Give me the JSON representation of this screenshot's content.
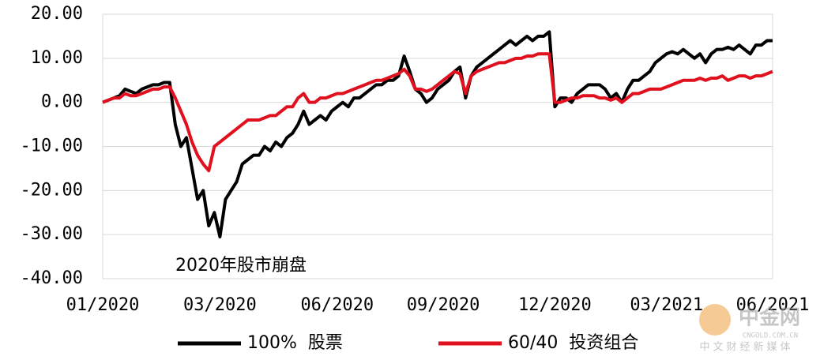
{
  "chart_data": {
    "type": "line",
    "annotation": "2020年股市崩盘",
    "watermark": {
      "name": "中金网",
      "site": "CNGOLD.COM.CN",
      "slogan": "中文财经新媒体"
    },
    "categories": [
      "01/2020",
      null,
      null,
      null,
      null,
      null,
      null,
      null,
      null,
      null,
      null,
      null,
      null,
      null,
      null,
      null,
      null,
      null,
      null,
      null,
      null,
      "03/2020",
      null,
      null,
      null,
      null,
      null,
      null,
      null,
      null,
      null,
      null,
      null,
      null,
      null,
      null,
      null,
      null,
      null,
      null,
      null,
      null,
      "06/2020",
      null,
      null,
      null,
      null,
      null,
      null,
      null,
      null,
      null,
      null,
      null,
      null,
      null,
      null,
      null,
      null,
      null,
      null,
      "09/2020",
      null,
      null,
      null,
      null,
      null,
      null,
      null,
      null,
      null,
      null,
      null,
      null,
      null,
      null,
      null,
      null,
      null,
      null,
      null,
      "12/2020",
      null,
      null,
      null,
      null,
      null,
      null,
      null,
      null,
      null,
      null,
      null,
      null,
      null,
      null,
      null,
      null,
      null,
      null,
      null,
      "03/2021",
      null,
      null,
      null,
      null,
      null,
      null,
      null,
      null,
      null,
      null,
      null,
      null,
      null,
      null,
      null,
      null,
      null,
      null,
      "06/2021"
    ],
    "series": [
      {
        "name": "100%  股票",
        "color": "#000000",
        "values": [
          0,
          0.5,
          1,
          1.5,
          3,
          2.5,
          2,
          3,
          3.5,
          4,
          4,
          4.5,
          4.5,
          -5,
          -10,
          -8,
          -15,
          -22,
          -20,
          -28,
          -25,
          -30.5,
          -22,
          -20,
          -18,
          -14,
          -13,
          -12,
          -12,
          -10,
          -11,
          -9,
          -10,
          -8,
          -7,
          -5,
          -2,
          -5,
          -4,
          -3,
          -4,
          -2,
          -1,
          0,
          -1,
          1,
          1,
          2,
          3,
          4,
          4,
          5,
          5,
          6,
          10.5,
          7,
          3,
          2,
          0,
          1,
          3,
          4,
          5,
          7,
          8,
          1,
          6,
          8,
          9,
          10,
          11,
          12,
          13,
          14,
          13,
          14,
          15,
          14,
          15,
          15,
          16,
          -1,
          1,
          1,
          0,
          2,
          3,
          4,
          4,
          4,
          3,
          1,
          2,
          0,
          3,
          5,
          5,
          6,
          7,
          9,
          10,
          11,
          11.5,
          11,
          12,
          11,
          10,
          11,
          9,
          11,
          12,
          12,
          12.5,
          12,
          13,
          12,
          11,
          13,
          13,
          14,
          14
        ]
      },
      {
        "name": "60/40  投资组合",
        "color": "#e0101e",
        "values": [
          0,
          0.5,
          1,
          1,
          2,
          1.5,
          1.5,
          2,
          2.5,
          3,
          3,
          3.5,
          3.5,
          1,
          -2,
          -5,
          -9,
          -12,
          -14,
          -15.5,
          -10,
          -9,
          -8,
          -7,
          -6,
          -5,
          -4,
          -4,
          -4,
          -3.5,
          -3,
          -3,
          -2,
          -1,
          -1,
          1,
          2,
          0,
          0,
          1,
          1,
          1.5,
          2,
          2,
          2.5,
          3,
          3.5,
          4,
          4.5,
          5,
          5,
          5.5,
          6,
          6.5,
          7.5,
          6,
          3,
          3,
          2.5,
          3,
          4,
          5,
          6,
          7,
          6.5,
          2,
          6,
          7,
          7.5,
          8,
          8.5,
          9,
          9,
          9.5,
          10,
          10,
          10.5,
          10.5,
          11,
          11,
          11,
          0,
          0,
          0.5,
          1,
          1,
          1.5,
          1.5,
          1.5,
          1,
          1,
          0.5,
          1,
          0,
          1,
          2,
          2,
          2.5,
          3,
          3,
          3,
          3.5,
          4,
          4.5,
          5,
          5,
          5,
          5.5,
          5,
          5.5,
          5.5,
          6,
          5,
          5.5,
          6,
          6,
          5.5,
          6,
          6,
          6.5,
          7
        ]
      }
    ],
    "ylim": [
      -40,
      20
    ],
    "yticks": [
      {
        "value": -40,
        "label": "-40.00"
      },
      {
        "value": -30,
        "label": "-30.00"
      },
      {
        "value": -20,
        "label": "-20.00"
      },
      {
        "value": -10,
        "label": "-10.00"
      },
      {
        "value": 0,
        "label": "0.00"
      },
      {
        "value": 10,
        "label": "10.00"
      },
      {
        "value": 20,
        "label": "20.00"
      }
    ],
    "grid": true,
    "legend": "bottom"
  }
}
